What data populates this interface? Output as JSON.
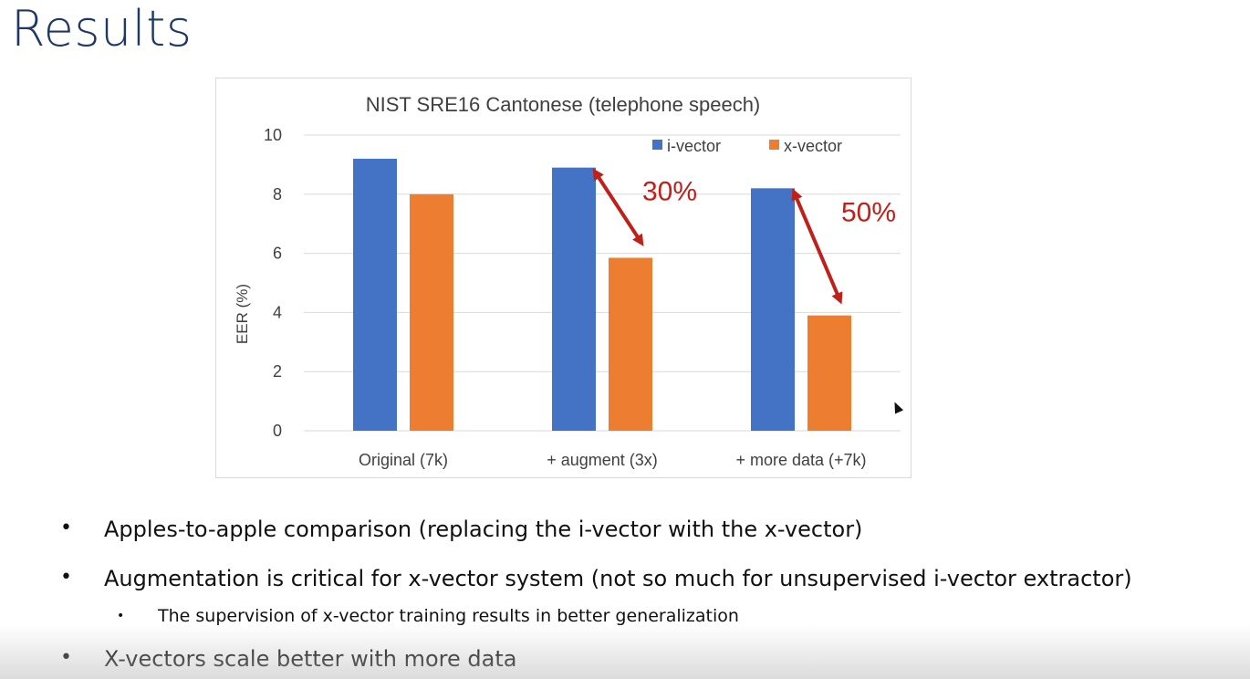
{
  "slide": {
    "title": "Results"
  },
  "bullets": [
    {
      "text": "Apples-to-apple comparison (replacing the i-vector with the x-vector)"
    },
    {
      "text": "Augmentation is critical for x-vector system (not so much for unsupervised i-vector extractor)"
    },
    {
      "text": "X-vectors scale better with more data"
    }
  ],
  "sub_bullets": [
    {
      "text": "The supervision of x-vector training results in better generalization"
    }
  ],
  "bullet_symbols": {
    "main": "•",
    "sub": "•"
  },
  "chart_data": {
    "type": "bar",
    "title": "NIST SRE16 Cantonese (telephone speech)",
    "xlabel": "",
    "ylabel": "EER (%)",
    "categories": [
      "Original (7k)",
      "+ augment (3x)",
      "+ more data (+7k)"
    ],
    "series": [
      {
        "name": "i-vector",
        "color": "#4472c4",
        "values": [
          9.2,
          8.9,
          8.2
        ]
      },
      {
        "name": "x-vector",
        "color": "#ed7d31",
        "values": [
          8.0,
          5.85,
          3.9
        ]
      }
    ],
    "ylim": [
      0,
      10
    ],
    "yticks": [
      0,
      2,
      4,
      6,
      8,
      10
    ],
    "grid": true,
    "legend_position": "top-right",
    "annotations": [
      {
        "text": "30%",
        "category_index": 1,
        "color": "#c0201a"
      },
      {
        "text": "50%",
        "category_index": 2,
        "color": "#c0201a"
      }
    ]
  }
}
